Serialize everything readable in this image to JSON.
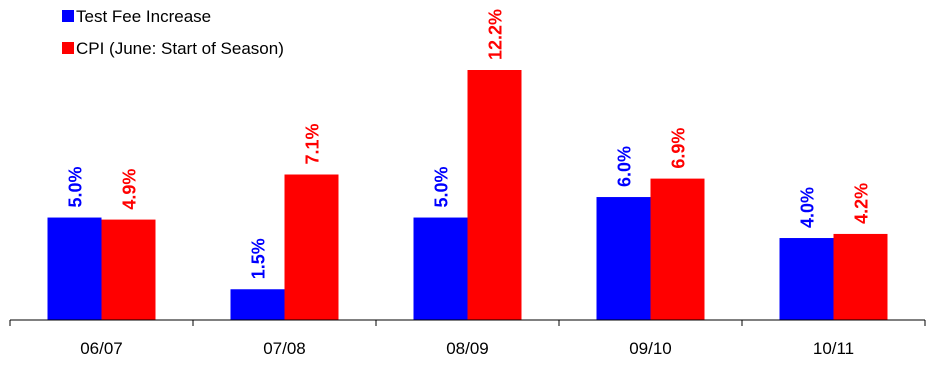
{
  "chart_data": {
    "type": "bar",
    "title": "",
    "xlabel": "",
    "ylabel": "",
    "categories": [
      "06/07",
      "07/08",
      "08/09",
      "09/10",
      "10/11"
    ],
    "series": [
      {
        "name": "Test Fee Increase",
        "color": "#0000ff",
        "values": [
          5.0,
          1.5,
          5.0,
          6.0,
          4.0
        ],
        "labels": [
          "5.0%",
          "1.5%",
          "5.0%",
          "6.0%",
          "4.0%"
        ]
      },
      {
        "name": "CPI (June: Start of Season)",
        "color": "#ff0000",
        "values": [
          4.9,
          7.1,
          12.2,
          6.9,
          4.2
        ],
        "labels": [
          "4.9%",
          "7.1%",
          "12.2%",
          "6.9%",
          "4.2%"
        ]
      }
    ],
    "ylim": [
      0,
      12.2
    ],
    "grid": false,
    "legend": "top-left",
    "data_labels": "rotated above bars"
  }
}
